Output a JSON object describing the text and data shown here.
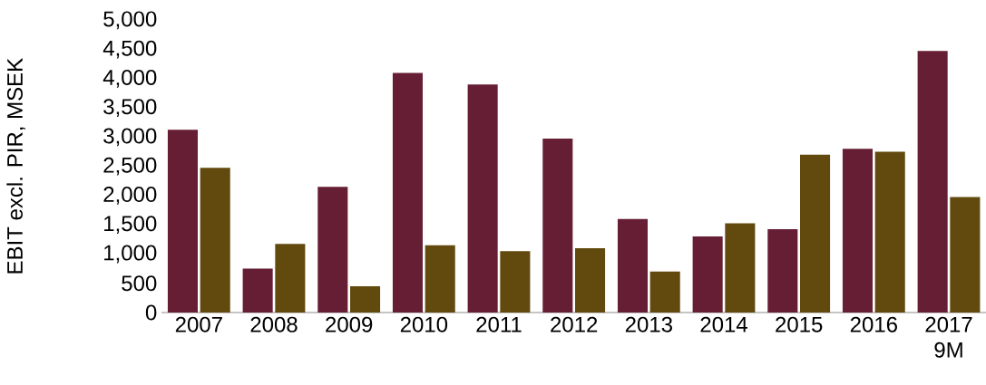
{
  "chart_data": {
    "type": "bar",
    "ylabel": "EBIT excl. PIR, MSEK",
    "categories": [
      "2007",
      "2008",
      "2009",
      "2010",
      "2011",
      "2012",
      "2013",
      "2014",
      "2015",
      "2016",
      "2017 9M"
    ],
    "series": [
      {
        "color": "#661e35",
        "values": [
          3125,
          750,
          2150,
          4100,
          3900,
          2975,
          1600,
          1300,
          1425,
          2800,
          4475
        ]
      },
      {
        "color": "#624a0e",
        "values": [
          2475,
          1175,
          450,
          1150,
          1050,
          1100,
          700,
          1525,
          2700,
          2750,
          1975
        ]
      }
    ],
    "ylim": [
      0,
      5000
    ],
    "yticks": [
      0,
      {
        "value": 500,
        "label": "500"
      },
      {
        "value": 1000,
        "label": "1,000"
      },
      {
        "value": 1500,
        "label": "1,500"
      },
      {
        "value": 2000,
        "label": "2,000"
      },
      {
        "value": 2500,
        "label": "2,500"
      },
      {
        "value": 3000,
        "label": "3,000"
      },
      {
        "value": 3500,
        "label": "3,500"
      },
      {
        "value": 4000,
        "label": "4,000"
      },
      {
        "value": 4500,
        "label": "4,500"
      },
      {
        "value": 5000,
        "label": "5,000"
      }
    ]
  }
}
